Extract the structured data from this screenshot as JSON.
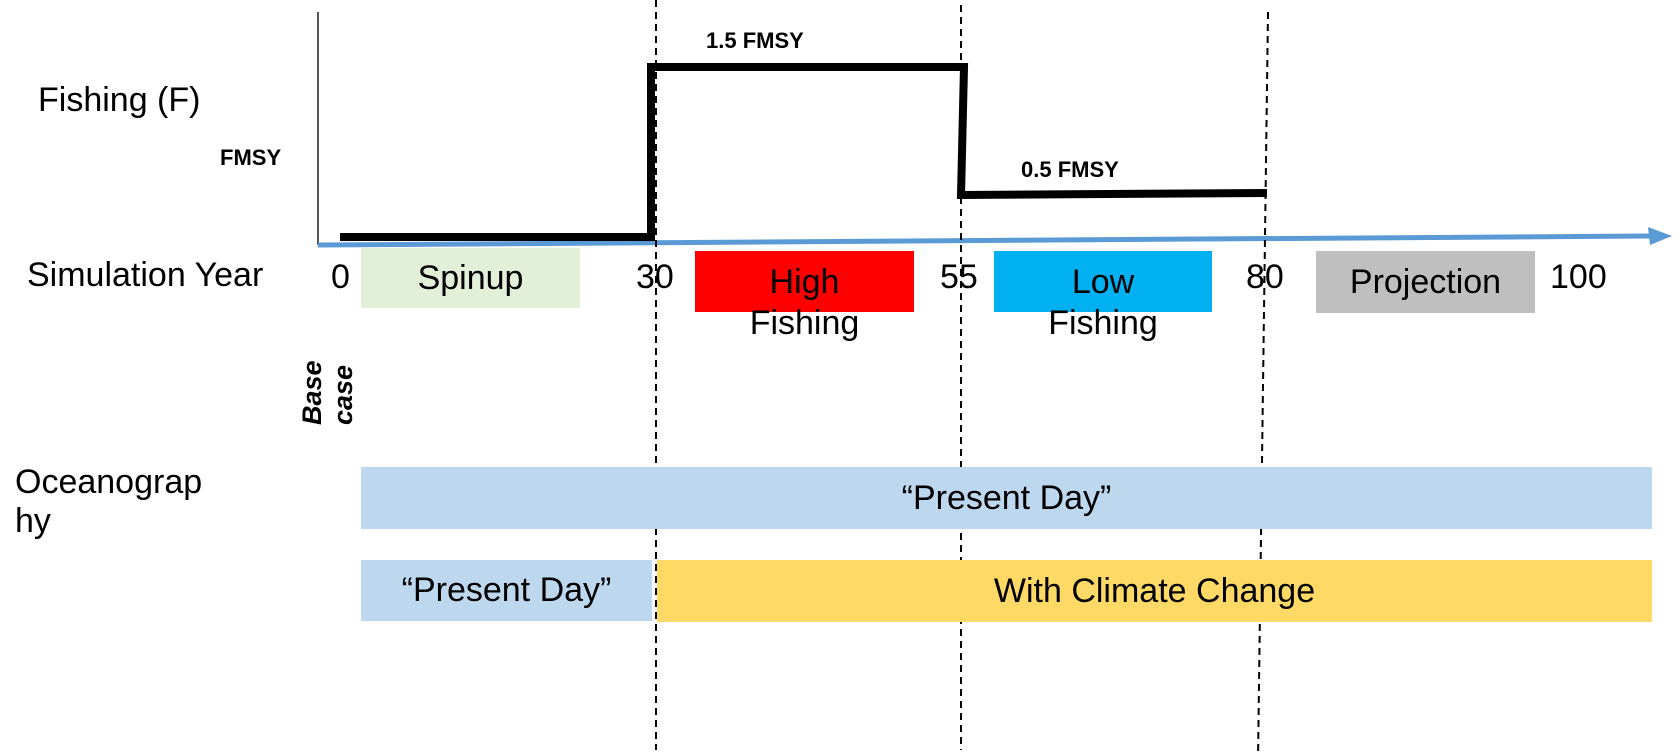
{
  "labels": {
    "fishing": "Fishing (F)",
    "fmsy_axis": "FMSY",
    "simulation_year": "Simulation Year",
    "oceanography": "Oceanograp\nhy",
    "base_case": "Base case",
    "high_fmsy": "1.5 FMSY",
    "low_fmsy": "0.5 FMSY"
  },
  "years": [
    "0",
    "30",
    "55",
    "80",
    "100"
  ],
  "phases": {
    "spinup": "Spinup",
    "high_fishing_1": "High",
    "high_fishing_2": "Fishing",
    "low_fishing_1": "Low",
    "low_fishing_2": "Fishing",
    "projection": "Projection"
  },
  "oceanography": {
    "present_day_full": "“Present Day”",
    "present_day_short": "“Present Day”",
    "climate_change": "With Climate Change"
  },
  "colors": {
    "spinup": "#e2efd9",
    "high_fishing": "#ff0000",
    "low_fishing": "#00b0f0",
    "projection": "#bfbfbf",
    "present_day": "#bdd7ee",
    "climate_change": "#ffd966",
    "time_arrow": "#5b9bd5"
  }
}
